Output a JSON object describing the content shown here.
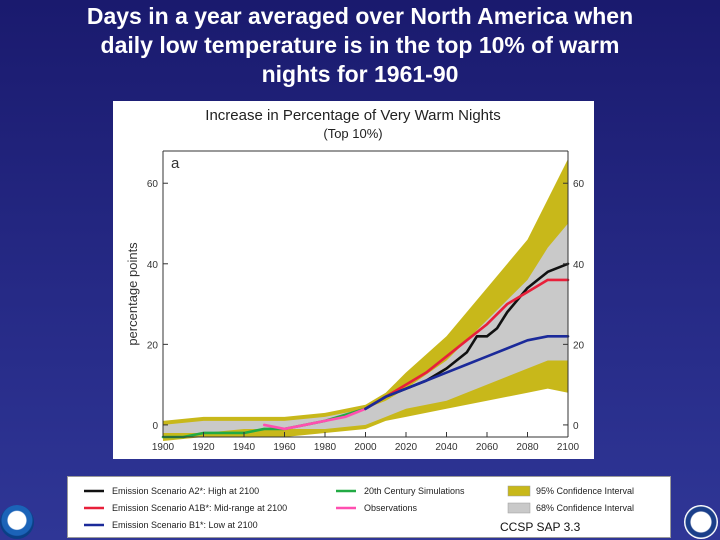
{
  "slide": {
    "title": "Days in a year averaged over North America when\ndaily low temperature is in the top 10% of warm\nnights for 1961-90",
    "source": "CCSP SAP 3.3"
  },
  "chart_data": {
    "type": "line",
    "title": "Increase in Percentage of Very Warm Nights",
    "subtitle": "(Top 10%)",
    "panel_label": "a",
    "ylabel": "percentage points",
    "xlabel": "",
    "xlim": [
      1900,
      2100
    ],
    "ylim": [
      -3,
      68
    ],
    "x_ticks": [
      1900,
      1920,
      1940,
      1960,
      1980,
      2000,
      2020,
      2040,
      2060,
      2080,
      2100
    ],
    "y_ticks": [
      0,
      20,
      40,
      60
    ],
    "grid": false,
    "bands": [
      {
        "name": "95% Confidence Interval",
        "color": "#c8b81a",
        "x": [
          1900,
          1920,
          1940,
          1960,
          1980,
          2000,
          2010,
          2020,
          2040,
          2060,
          2080,
          2090,
          2100
        ],
        "lower": [
          -4,
          -3,
          -3,
          -3,
          -2,
          -1,
          1,
          2,
          4,
          6,
          8,
          9,
          8
        ],
        "upper": [
          1,
          2,
          2,
          2,
          3,
          5,
          8,
          13,
          22,
          34,
          46,
          56,
          66
        ]
      },
      {
        "name": "68% Confidence Interval",
        "color": "#c9c9c9",
        "x": [
          1900,
          1920,
          1940,
          1960,
          1980,
          2000,
          2010,
          2020,
          2040,
          2060,
          2080,
          2090,
          2100
        ],
        "lower": [
          -2,
          -2,
          -1,
          -1,
          -1,
          0,
          2,
          4,
          6,
          10,
          14,
          16,
          16
        ],
        "upper": [
          0,
          1,
          1,
          1,
          2,
          4,
          6,
          9,
          16,
          26,
          36,
          44,
          50
        ]
      }
    ],
    "series": [
      {
        "name": "20th Century Simulations",
        "color": "#22aa44",
        "x": [
          1900,
          1910,
          1920,
          1930,
          1940,
          1950,
          1960,
          1970,
          1980,
          2000
        ],
        "values": [
          -3,
          -3,
          -2,
          -2,
          -2,
          -1,
          -1,
          0,
          1,
          4
        ]
      },
      {
        "name": "Observations",
        "color": "#ff4fb0",
        "x": [
          1950,
          1960,
          1970,
          1980,
          1990,
          2000
        ],
        "values": [
          0,
          -1,
          0,
          1,
          2,
          4
        ]
      },
      {
        "name": "Emission Scenario A2*: High at 2100",
        "color": "#111111",
        "x": [
          2000,
          2010,
          2020,
          2030,
          2040,
          2050,
          2055,
          2060,
          2065,
          2070,
          2080,
          2090,
          2100
        ],
        "values": [
          4,
          7,
          9,
          11,
          14,
          18,
          22,
          22,
          24,
          28,
          34,
          38,
          40
        ]
      },
      {
        "name": "Emission Scenario A1B*: Mid-range at 2100",
        "color": "#e8203a",
        "x": [
          2000,
          2010,
          2020,
          2030,
          2040,
          2050,
          2060,
          2070,
          2080,
          2090,
          2100
        ],
        "values": [
          4,
          7,
          10,
          13,
          17,
          21,
          25,
          30,
          33,
          36,
          36
        ]
      },
      {
        "name": "Emission Scenario B1*: Low at 2100",
        "color": "#1b2a9a",
        "x": [
          2000,
          2010,
          2020,
          2030,
          2040,
          2050,
          2060,
          2070,
          2080,
          2090,
          2100
        ],
        "values": [
          4,
          7,
          9,
          11,
          13,
          15,
          17,
          19,
          21,
          22,
          22
        ]
      }
    ],
    "legend": {
      "position": "bottom",
      "columns": [
        [
          {
            "label": "Emission Scenario A2*: High at 2100",
            "type": "line",
            "color": "#111111"
          },
          {
            "label": "Emission Scenario A1B*: Mid-range at 2100",
            "type": "line",
            "color": "#e8203a"
          },
          {
            "label": "Emission Scenario B1*: Low at 2100",
            "type": "line",
            "color": "#1b2a9a"
          }
        ],
        [
          {
            "label": "20th Century Simulations",
            "type": "line",
            "color": "#22aa44"
          },
          {
            "label": "Observations",
            "type": "line",
            "color": "#ff4fb0"
          }
        ],
        [
          {
            "label": "95% Confidence Interval",
            "type": "box",
            "color": "#c8b81a"
          },
          {
            "label": "68% Confidence Interval",
            "type": "box",
            "color": "#c9c9c9"
          }
        ]
      ]
    }
  }
}
